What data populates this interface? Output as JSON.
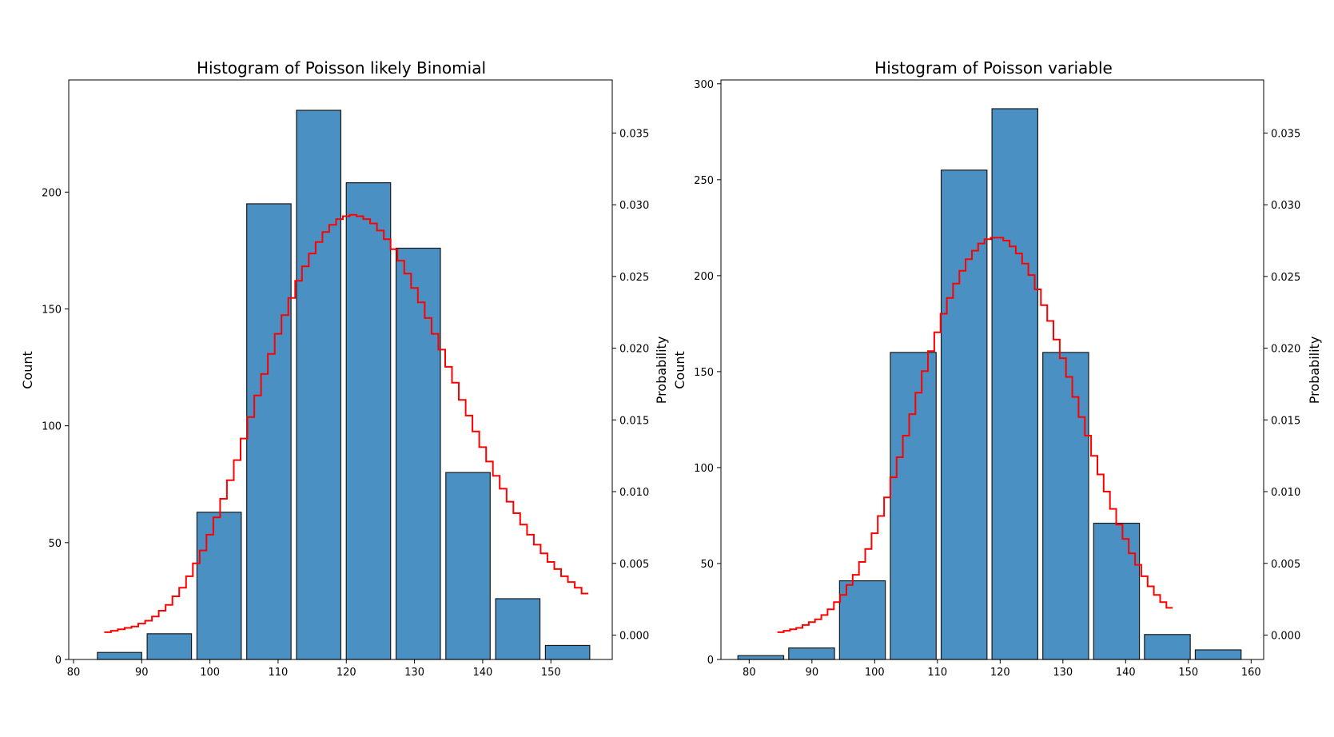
{
  "chart_data": [
    {
      "type": "bar",
      "title": "Histogram of Poisson likely Binomial",
      "ylabel": "Count",
      "y2label": "Probability",
      "xlim": [
        79.3,
        159.0
      ],
      "ylim": [
        0,
        248
      ],
      "y2lim": [
        -0.0017,
        0.0387
      ],
      "xticks": [
        80,
        90,
        100,
        110,
        120,
        130,
        140,
        150
      ],
      "yticks": [
        0,
        50,
        100,
        150,
        200
      ],
      "y2ticks": [
        0.0,
        0.005,
        0.01,
        0.015,
        0.02,
        0.025,
        0.03,
        0.035
      ],
      "y2ticklabels": [
        "0.000",
        "0.005",
        "0.010",
        "0.015",
        "0.020",
        "0.025",
        "0.030",
        "0.035"
      ],
      "bins": [
        {
          "start": 83.5,
          "end": 90.0,
          "count": 3
        },
        {
          "start": 90.8,
          "end": 97.3,
          "count": 11
        },
        {
          "start": 98.1,
          "end": 104.6,
          "count": 63
        },
        {
          "start": 105.4,
          "end": 111.9,
          "count": 195
        },
        {
          "start": 112.7,
          "end": 119.2,
          "count": 235
        },
        {
          "start": 120.0,
          "end": 126.5,
          "count": 204
        },
        {
          "start": 127.3,
          "end": 133.8,
          "count": 176
        },
        {
          "start": 134.6,
          "end": 141.1,
          "count": 80
        },
        {
          "start": 141.9,
          "end": 148.4,
          "count": 26
        },
        {
          "start": 149.2,
          "end": 155.7,
          "count": 6
        }
      ],
      "pmf_x": [
        85,
        86,
        87,
        88,
        89,
        90,
        91,
        92,
        93,
        94,
        95,
        96,
        97,
        98,
        99,
        100,
        101,
        102,
        103,
        104,
        105,
        106,
        107,
        108,
        109,
        110,
        111,
        112,
        113,
        114,
        115,
        116,
        117,
        118,
        119,
        120,
        121,
        122,
        123,
        124,
        125,
        126,
        127,
        128,
        129,
        130,
        131,
        132,
        133,
        134,
        135,
        136,
        137,
        138,
        139,
        140,
        141,
        142,
        143,
        144,
        145,
        146,
        147,
        148,
        149,
        150,
        151,
        152,
        153,
        154,
        155
      ],
      "pmf_y": [
        0.0002,
        0.0003,
        0.0004,
        0.0005,
        0.0006,
        0.0008,
        0.001,
        0.0013,
        0.0017,
        0.0021,
        0.0027,
        0.0033,
        0.0041,
        0.005,
        0.0059,
        0.007,
        0.0082,
        0.0095,
        0.0108,
        0.0122,
        0.0137,
        0.0152,
        0.0167,
        0.0182,
        0.0196,
        0.021,
        0.0223,
        0.0235,
        0.0247,
        0.0257,
        0.0266,
        0.0274,
        0.0281,
        0.0286,
        0.029,
        0.0292,
        0.0293,
        0.0292,
        0.029,
        0.0287,
        0.0282,
        0.0276,
        0.0269,
        0.0261,
        0.0252,
        0.0242,
        0.0232,
        0.0221,
        0.021,
        0.0199,
        0.0187,
        0.0176,
        0.0164,
        0.0153,
        0.0142,
        0.0131,
        0.0121,
        0.0111,
        0.0102,
        0.0093,
        0.0085,
        0.0077,
        0.007,
        0.0063,
        0.0057,
        0.0051,
        0.0046,
        0.0041,
        0.0037,
        0.0033,
        0.0029
      ]
    },
    {
      "type": "bar",
      "title": "Histogram of Poisson variable",
      "ylabel": "Count",
      "y2label": "Probability",
      "xlim": [
        75.5,
        162.0
      ],
      "ylim": [
        0,
        302
      ],
      "y2lim": [
        -0.0017,
        0.0387
      ],
      "xticks": [
        80,
        90,
        100,
        110,
        120,
        130,
        140,
        150,
        160
      ],
      "yticks": [
        0,
        50,
        100,
        150,
        200,
        250,
        300
      ],
      "y2ticks": [
        0.0,
        0.005,
        0.01,
        0.015,
        0.02,
        0.025,
        0.03,
        0.035
      ],
      "y2ticklabels": [
        "0.000",
        "0.005",
        "0.010",
        "0.015",
        "0.020",
        "0.025",
        "0.030",
        "0.035"
      ],
      "bins": [
        {
          "start": 78.2,
          "end": 85.5,
          "count": 2
        },
        {
          "start": 86.3,
          "end": 93.6,
          "count": 6
        },
        {
          "start": 94.4,
          "end": 101.7,
          "count": 41
        },
        {
          "start": 102.5,
          "end": 109.8,
          "count": 160
        },
        {
          "start": 110.6,
          "end": 117.9,
          "count": 255
        },
        {
          "start": 118.7,
          "end": 126.0,
          "count": 287
        },
        {
          "start": 126.8,
          "end": 134.1,
          "count": 160
        },
        {
          "start": 134.9,
          "end": 142.2,
          "count": 71
        },
        {
          "start": 143.0,
          "end": 150.3,
          "count": 13
        },
        {
          "start": 151.1,
          "end": 158.4,
          "count": 5
        }
      ],
      "pmf_x": [
        85,
        86,
        87,
        88,
        89,
        90,
        91,
        92,
        93,
        94,
        95,
        96,
        97,
        98,
        99,
        100,
        101,
        102,
        103,
        104,
        105,
        106,
        107,
        108,
        109,
        110,
        111,
        112,
        113,
        114,
        115,
        116,
        117,
        118,
        119,
        120,
        121,
        122,
        123,
        124,
        125,
        126,
        127,
        128,
        129,
        130,
        131,
        132,
        133,
        134,
        135,
        136,
        137,
        138,
        139,
        140,
        141,
        142,
        143,
        144,
        145,
        146,
        147
      ],
      "pmf_y": [
        0.0002,
        0.0003,
        0.0004,
        0.0005,
        0.0007,
        0.0009,
        0.0011,
        0.0014,
        0.0018,
        0.0023,
        0.0028,
        0.0035,
        0.0042,
        0.0051,
        0.006,
        0.0071,
        0.0083,
        0.0096,
        0.011,
        0.0124,
        0.0139,
        0.0154,
        0.0169,
        0.0184,
        0.0198,
        0.0211,
        0.0224,
        0.0235,
        0.0245,
        0.0254,
        0.0262,
        0.0268,
        0.0273,
        0.0276,
        0.0277,
        0.0277,
        0.0275,
        0.0271,
        0.0266,
        0.0259,
        0.0251,
        0.0241,
        0.023,
        0.0219,
        0.0206,
        0.0193,
        0.018,
        0.0166,
        0.0152,
        0.0139,
        0.0125,
        0.0112,
        0.01,
        0.0088,
        0.0077,
        0.0067,
        0.0057,
        0.0049,
        0.0041,
        0.0034,
        0.0028,
        0.0023,
        0.0019
      ]
    }
  ]
}
